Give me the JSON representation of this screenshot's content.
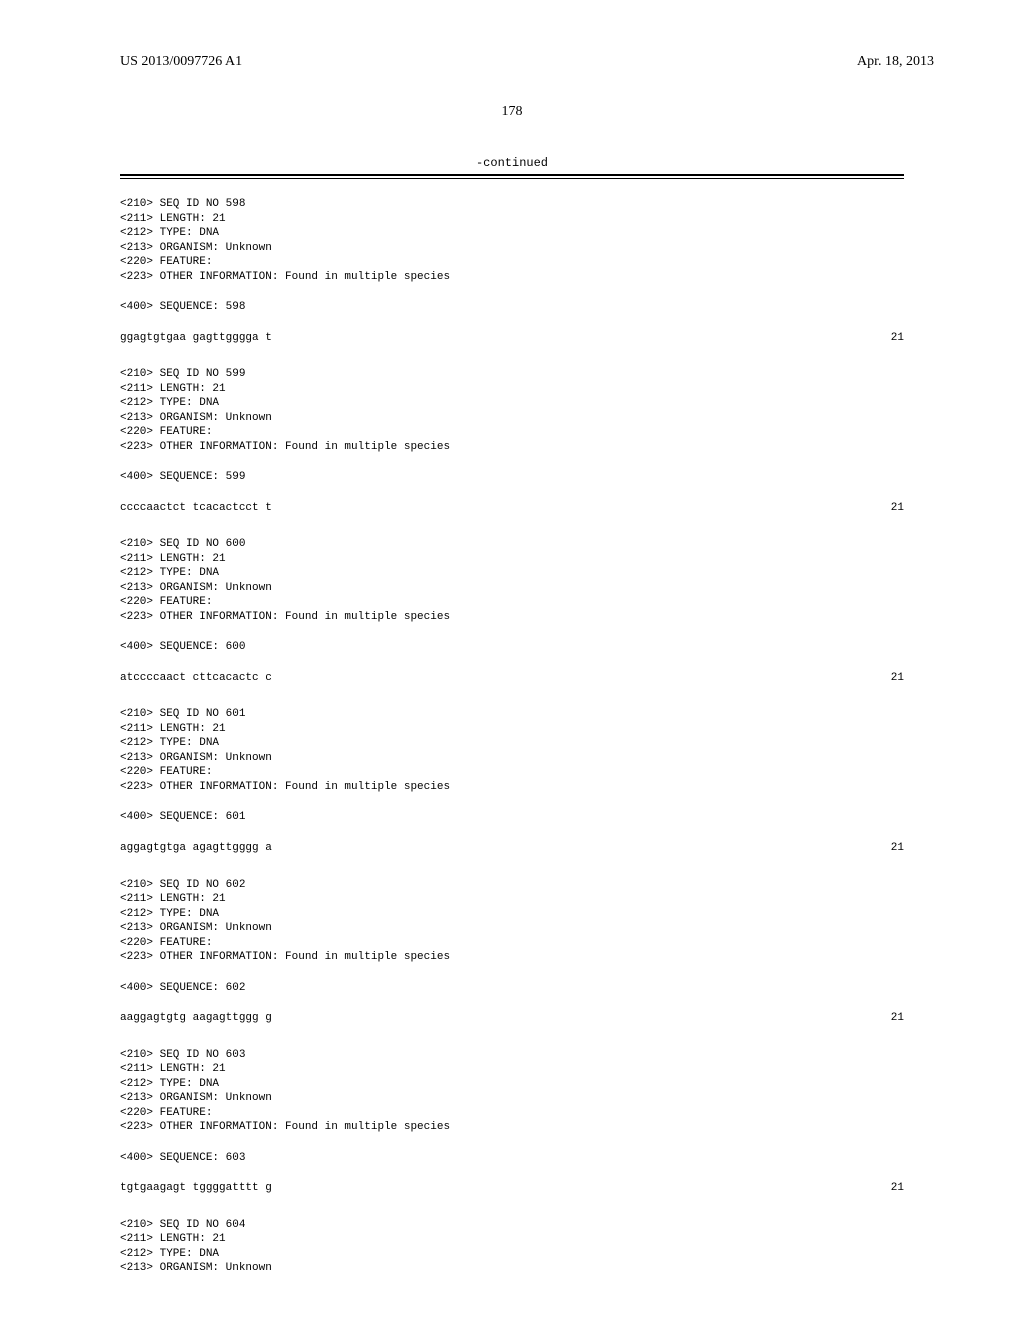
{
  "header": {
    "left": "US 2013/0097726 A1",
    "right": "Apr. 18, 2013"
  },
  "page_number": "178",
  "continued_label": "-continued",
  "entries": [
    {
      "lines": [
        "<210> SEQ ID NO 598",
        "<211> LENGTH: 21",
        "<212> TYPE: DNA",
        "<213> ORGANISM: Unknown",
        "<220> FEATURE:",
        "<223> OTHER INFORMATION: Found in multiple species"
      ],
      "seq_label": "<400> SEQUENCE: 598",
      "seq_data": "ggagtgtgaa gagttgggga t",
      "seq_len": "21"
    },
    {
      "lines": [
        "<210> SEQ ID NO 599",
        "<211> LENGTH: 21",
        "<212> TYPE: DNA",
        "<213> ORGANISM: Unknown",
        "<220> FEATURE:",
        "<223> OTHER INFORMATION: Found in multiple species"
      ],
      "seq_label": "<400> SEQUENCE: 599",
      "seq_data": "ccccaactct tcacactcct t",
      "seq_len": "21"
    },
    {
      "lines": [
        "<210> SEQ ID NO 600",
        "<211> LENGTH: 21",
        "<212> TYPE: DNA",
        "<213> ORGANISM: Unknown",
        "<220> FEATURE:",
        "<223> OTHER INFORMATION: Found in multiple species"
      ],
      "seq_label": "<400> SEQUENCE: 600",
      "seq_data": "atccccaact cttcacactc c",
      "seq_len": "21"
    },
    {
      "lines": [
        "<210> SEQ ID NO 601",
        "<211> LENGTH: 21",
        "<212> TYPE: DNA",
        "<213> ORGANISM: Unknown",
        "<220> FEATURE:",
        "<223> OTHER INFORMATION: Found in multiple species"
      ],
      "seq_label": "<400> SEQUENCE: 601",
      "seq_data": "aggagtgtga agagttgggg a",
      "seq_len": "21"
    },
    {
      "lines": [
        "<210> SEQ ID NO 602",
        "<211> LENGTH: 21",
        "<212> TYPE: DNA",
        "<213> ORGANISM: Unknown",
        "<220> FEATURE:",
        "<223> OTHER INFORMATION: Found in multiple species"
      ],
      "seq_label": "<400> SEQUENCE: 602",
      "seq_data": "aaggagtgtg aagagttggg g",
      "seq_len": "21"
    },
    {
      "lines": [
        "<210> SEQ ID NO 603",
        "<211> LENGTH: 21",
        "<212> TYPE: DNA",
        "<213> ORGANISM: Unknown",
        "<220> FEATURE:",
        "<223> OTHER INFORMATION: Found in multiple species"
      ],
      "seq_label": "<400> SEQUENCE: 603",
      "seq_data": "tgtgaagagt tggggatttt g",
      "seq_len": "21"
    },
    {
      "lines": [
        "<210> SEQ ID NO 604",
        "<211> LENGTH: 21",
        "<212> TYPE: DNA",
        "<213> ORGANISM: Unknown"
      ],
      "seq_label": null,
      "seq_data": null,
      "seq_len": null
    }
  ]
}
